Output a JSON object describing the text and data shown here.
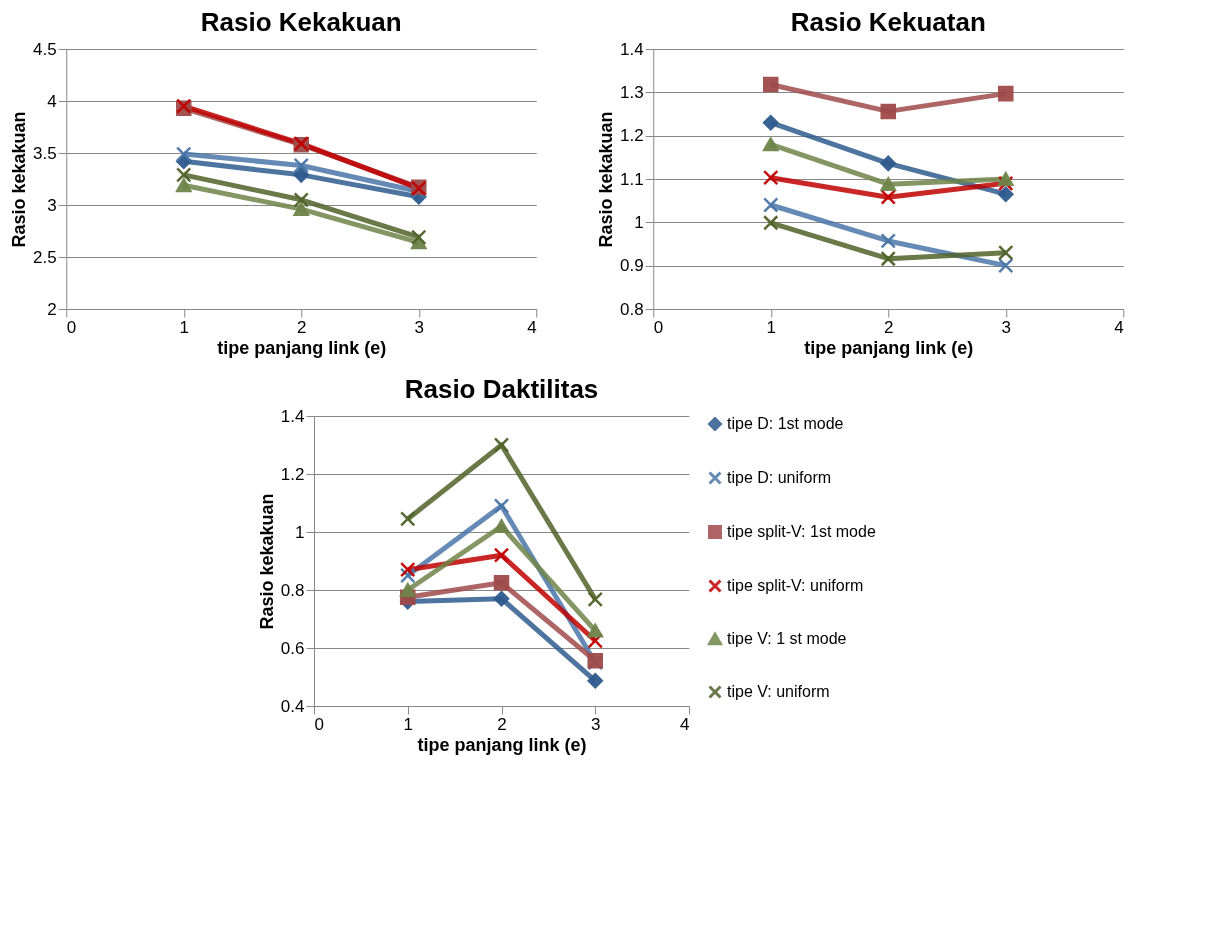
{
  "chart_data": [
    {
      "type": "line",
      "title": "Rasio Kekakuan",
      "xlabel": "tipe panjang link (e)",
      "ylabel": "Rasio kekakuan",
      "x": [
        1,
        2,
        3
      ],
      "xlim": [
        0,
        4
      ],
      "xticks": [
        0,
        1,
        2,
        3,
        4
      ],
      "ylim": [
        2,
        4.5
      ],
      "yticks": [
        2,
        2.5,
        3,
        3.5,
        4,
        4.5
      ],
      "grid": "y",
      "legend": false,
      "line_style": "solid",
      "series": [
        {
          "color": "#2e5a8e",
          "marker": "diamond",
          "values": [
            3.42,
            3.29,
            3.08
          ]
        },
        {
          "color": "#4a76a8",
          "marker": "cross",
          "values": [
            3.49,
            3.38,
            3.13
          ]
        },
        {
          "color": "#a04a4a",
          "marker": "square",
          "values": [
            3.93,
            3.58,
            3.17
          ]
        },
        {
          "color": "#c00000",
          "marker": "cross",
          "values": [
            3.95,
            3.59,
            3.16
          ]
        },
        {
          "color": "#6e8449",
          "marker": "triangle",
          "values": [
            3.19,
            2.96,
            2.64
          ]
        },
        {
          "color": "#4f6228",
          "marker": "cross",
          "values": [
            3.29,
            3.05,
            2.69
          ]
        }
      ]
    },
    {
      "type": "line",
      "title": "Rasio Kekuatan",
      "xlabel": "tipe panjang link (e)",
      "ylabel": "Rasio kekakuan",
      "x": [
        1,
        2,
        3
      ],
      "xlim": [
        0,
        4
      ],
      "xticks": [
        0,
        1,
        2,
        3,
        4
      ],
      "ylim": [
        0.8,
        1.4
      ],
      "yticks": [
        0.8,
        0.9,
        1,
        1.1,
        1.2,
        1.3,
        1.4
      ],
      "grid": "y",
      "legend": false,
      "line_style": "solid",
      "series": [
        {
          "color": "#2e5a8e",
          "marker": "diamond",
          "values": [
            1.23,
            1.136,
            1.065
          ]
        },
        {
          "color": "#4a76a8",
          "marker": "cross",
          "values": [
            1.04,
            0.957,
            0.9
          ]
        },
        {
          "color": "#a04a4a",
          "marker": "square",
          "values": [
            1.318,
            1.256,
            1.297
          ]
        },
        {
          "color": "#c00000",
          "marker": "cross",
          "values": [
            1.103,
            1.058,
            1.09
          ]
        },
        {
          "color": "#6e8449",
          "marker": "triangle",
          "values": [
            1.18,
            1.088,
            1.1
          ]
        },
        {
          "color": "#4f6228",
          "marker": "cross",
          "values": [
            0.999,
            0.916,
            0.93
          ]
        }
      ]
    },
    {
      "type": "line",
      "title": "Rasio Daktilitas",
      "xlabel": "tipe panjang link (e)",
      "ylabel": "Rasio kekakuan",
      "x": [
        1,
        2,
        3
      ],
      "xlim": [
        0,
        4
      ],
      "xticks": [
        0,
        1,
        2,
        3,
        4
      ],
      "ylim": [
        0.4,
        1.4
      ],
      "yticks": [
        0.4,
        0.6,
        0.8,
        1,
        1.2,
        1.4
      ],
      "grid": "y",
      "legend": "right",
      "line_style": "solid",
      "series": [
        {
          "name": "tipe D: 1st mode",
          "color": "#2e5a8e",
          "marker": "diamond",
          "values": [
            0.76,
            0.77,
            0.487
          ]
        },
        {
          "name": "tipe D: uniform",
          "color": "#4a76a8",
          "marker": "cross",
          "values": [
            0.85,
            1.09,
            0.55
          ]
        },
        {
          "name": "tipe split-V: 1st mode",
          "color": "#a04a4a",
          "marker": "square",
          "values": [
            0.775,
            0.825,
            0.556
          ]
        },
        {
          "name": "tipe split-V: uniform",
          "color": "#c00000",
          "marker": "cross",
          "values": [
            0.87,
            0.92,
            0.625
          ]
        },
        {
          "name": "tipe V: 1 st mode",
          "color": "#6e8449",
          "marker": "triangle",
          "values": [
            0.8,
            1.02,
            0.66
          ]
        },
        {
          "name": "tipe V: uniform",
          "color": "#4f6228",
          "marker": "cross",
          "values": [
            1.045,
            1.3,
            0.768
          ]
        }
      ]
    }
  ]
}
